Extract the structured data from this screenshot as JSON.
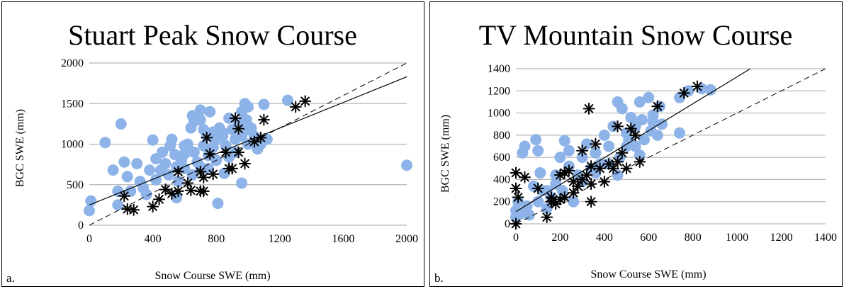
{
  "chart_data": [
    {
      "type": "scatter",
      "panel_label": "a.",
      "title": "Stuart Peak Snow Course",
      "xlabel": "Snow Course SWE (mm)",
      "ylabel": "BGC SWE (mm)",
      "xlim": [
        0,
        2000
      ],
      "ylim": [
        0,
        2000
      ],
      "xticks": [
        0,
        400,
        800,
        1200,
        1600,
        2000
      ],
      "yticks": [
        0,
        500,
        1000,
        1500,
        2000
      ],
      "grid": "horizontal",
      "colors": {
        "circle": "#8DB3E8",
        "star": "#000000",
        "fit": "#000000",
        "oneToOne": "#000000"
      },
      "fit_line": {
        "x": [
          0,
          2000
        ],
        "y": [
          250,
          1830
        ]
      },
      "one_to_one_line": {
        "x": [
          0,
          2000
        ],
        "y": [
          0,
          2000
        ]
      },
      "series": [
        {
          "marker": "circle",
          "points": [
            [
              0,
              180
            ],
            [
              10,
              300
            ],
            [
              100,
              1020
            ],
            [
              180,
              250
            ],
            [
              180,
              420
            ],
            [
              200,
              1250
            ],
            [
              150,
              680
            ],
            [
              220,
              780
            ],
            [
              240,
              600
            ],
            [
              260,
              420
            ],
            [
              300,
              760
            ],
            [
              320,
              540
            ],
            [
              340,
              460
            ],
            [
              360,
              380
            ],
            [
              380,
              680
            ],
            [
              400,
              1050
            ],
            [
              420,
              820
            ],
            [
              420,
              560
            ],
            [
              450,
              680
            ],
            [
              460,
              900
            ],
            [
              480,
              760
            ],
            [
              500,
              620
            ],
            [
              510,
              980
            ],
            [
              520,
              1060
            ],
            [
              540,
              870
            ],
            [
              550,
              720
            ],
            [
              560,
              540
            ],
            [
              580,
              800
            ],
            [
              600,
              880
            ],
            [
              600,
              700
            ],
            [
              620,
              1000
            ],
            [
              640,
              1200
            ],
            [
              650,
              1350
            ],
            [
              660,
              900
            ],
            [
              680,
              780
            ],
            [
              700,
              1300
            ],
            [
              700,
              1420
            ],
            [
              720,
              980
            ],
            [
              740,
              1100
            ],
            [
              750,
              860
            ],
            [
              760,
              1400
            ],
            [
              780,
              1150
            ],
            [
              780,
              960
            ],
            [
              800,
              800
            ],
            [
              800,
              1060
            ],
            [
              810,
              270
            ],
            [
              820,
              1200
            ],
            [
              840,
              1100
            ],
            [
              860,
              980
            ],
            [
              880,
              1320
            ],
            [
              880,
              840
            ],
            [
              900,
              1180
            ],
            [
              920,
              1060
            ],
            [
              920,
              900
            ],
            [
              940,
              1250
            ],
            [
              960,
              1400
            ],
            [
              960,
              1100
            ],
            [
              980,
              1500
            ],
            [
              990,
              1300
            ],
            [
              1000,
              1460
            ],
            [
              1000,
              1000
            ],
            [
              1020,
              1200
            ],
            [
              1040,
              1100
            ],
            [
              1060,
              940
            ],
            [
              1080,
              1000
            ],
            [
              1100,
              1490
            ],
            [
              1120,
              1060
            ],
            [
              1250,
              1540
            ],
            [
              960,
              520
            ],
            [
              2000,
              740
            ],
            [
              550,
              340
            ],
            [
              650,
              620
            ],
            [
              700,
              720
            ],
            [
              850,
              640
            ],
            [
              750,
              700
            ],
            [
              600,
              980
            ],
            [
              660,
              1280
            ],
            [
              720,
              1180
            ],
            [
              840,
              1140
            ],
            [
              1000,
              1180
            ]
          ]
        },
        {
          "marker": "star",
          "points": [
            [
              220,
              360
            ],
            [
              240,
              200
            ],
            [
              280,
              190
            ],
            [
              400,
              230
            ],
            [
              440,
              320
            ],
            [
              480,
              440
            ],
            [
              520,
              390
            ],
            [
              560,
              420
            ],
            [
              560,
              660
            ],
            [
              620,
              520
            ],
            [
              640,
              430
            ],
            [
              700,
              420
            ],
            [
              700,
              660
            ],
            [
              720,
              590
            ],
            [
              720,
              420
            ],
            [
              740,
              1080
            ],
            [
              760,
              880
            ],
            [
              780,
              630
            ],
            [
              860,
              900
            ],
            [
              880,
              700
            ],
            [
              900,
              700
            ],
            [
              920,
              1320
            ],
            [
              940,
              1190
            ],
            [
              940,
              900
            ],
            [
              980,
              760
            ],
            [
              1040,
              1030
            ],
            [
              1080,
              1080
            ],
            [
              1100,
              1300
            ],
            [
              1300,
              1460
            ],
            [
              1360,
              1530
            ]
          ]
        }
      ]
    },
    {
      "type": "scatter",
      "panel_label": "b.",
      "title": "TV Mountain Snow Course",
      "xlabel": "Snow Course SWE (mm)",
      "ylabel": "BGC SWE (mm)",
      "xlim": [
        0,
        1400
      ],
      "ylim": [
        0,
        1400
      ],
      "xticks": [
        0,
        200,
        400,
        600,
        800,
        1000,
        1200,
        1400
      ],
      "yticks": [
        0,
        200,
        400,
        600,
        800,
        1000,
        1200,
        1400
      ],
      "grid": "horizontal",
      "colors": {
        "circle": "#8DB3E8",
        "star": "#000000",
        "fit": "#000000",
        "oneToOne": "#000000"
      },
      "fit_line": {
        "x": [
          0,
          1060
        ],
        "y": [
          110,
          1400
        ]
      },
      "one_to_one_line": {
        "x": [
          0,
          1400
        ],
        "y": [
          0,
          1400
        ]
      },
      "series": [
        {
          "marker": "circle",
          "points": [
            [
              0,
              60
            ],
            [
              0,
              120
            ],
            [
              10,
              200
            ],
            [
              20,
              90
            ],
            [
              30,
              640
            ],
            [
              40,
              700
            ],
            [
              50,
              160
            ],
            [
              60,
              80
            ],
            [
              80,
              340
            ],
            [
              90,
              760
            ],
            [
              100,
              660
            ],
            [
              110,
              460
            ],
            [
              120,
              300
            ],
            [
              140,
              140
            ],
            [
              160,
              240
            ],
            [
              180,
              360
            ],
            [
              200,
              600
            ],
            [
              210,
              300
            ],
            [
              220,
              750
            ],
            [
              240,
              660
            ],
            [
              260,
              200
            ],
            [
              280,
              440
            ],
            [
              300,
              600
            ],
            [
              320,
              720
            ],
            [
              340,
              500
            ],
            [
              360,
              640
            ],
            [
              380,
              540
            ],
            [
              400,
              800
            ],
            [
              420,
              700
            ],
            [
              440,
              880
            ],
            [
              460,
              1100
            ],
            [
              470,
              600
            ],
            [
              480,
              1040
            ],
            [
              500,
              820
            ],
            [
              510,
              760
            ],
            [
              520,
              960
            ],
            [
              540,
              880
            ],
            [
              560,
              1100
            ],
            [
              570,
              940
            ],
            [
              580,
              760
            ],
            [
              600,
              1140
            ],
            [
              610,
              840
            ],
            [
              620,
              980
            ],
            [
              640,
              800
            ],
            [
              650,
              1060
            ],
            [
              660,
              900
            ],
            [
              740,
              820
            ],
            [
              740,
              1140
            ],
            [
              780,
              1200
            ],
            [
              840,
              1220
            ],
            [
              880,
              1210
            ],
            [
              300,
              380
            ],
            [
              360,
              460
            ],
            [
              420,
              540
            ],
            [
              460,
              440
            ],
            [
              500,
              700
            ],
            [
              540,
              700
            ],
            [
              560,
              620
            ],
            [
              620,
              920
            ],
            [
              240,
              520
            ],
            [
              180,
              440
            ],
            [
              140,
              300
            ],
            [
              100,
              200
            ]
          ]
        },
        {
          "marker": "star",
          "points": [
            [
              0,
              0
            ],
            [
              0,
              460
            ],
            [
              0,
              320
            ],
            [
              10,
              240
            ],
            [
              40,
              420
            ],
            [
              100,
              320
            ],
            [
              140,
              60
            ],
            [
              160,
              240
            ],
            [
              160,
              200
            ],
            [
              180,
              180
            ],
            [
              200,
              220
            ],
            [
              220,
              240
            ],
            [
              220,
              460
            ],
            [
              240,
              480
            ],
            [
              260,
              380
            ],
            [
              280,
              340
            ],
            [
              300,
              400
            ],
            [
              300,
              660
            ],
            [
              320,
              440
            ],
            [
              330,
              1040
            ],
            [
              340,
              520
            ],
            [
              340,
              200
            ],
            [
              360,
              720
            ],
            [
              380,
              500
            ],
            [
              400,
              380
            ],
            [
              420,
              540
            ],
            [
              440,
              500
            ],
            [
              460,
              560
            ],
            [
              460,
              880
            ],
            [
              480,
              640
            ],
            [
              500,
              500
            ],
            [
              520,
              860
            ],
            [
              540,
              800
            ],
            [
              560,
              560
            ],
            [
              640,
              1060
            ],
            [
              760,
              1180
            ],
            [
              820,
              1240
            ],
            [
              200,
              440
            ],
            [
              260,
              280
            ],
            [
              340,
              360
            ]
          ]
        }
      ]
    }
  ]
}
